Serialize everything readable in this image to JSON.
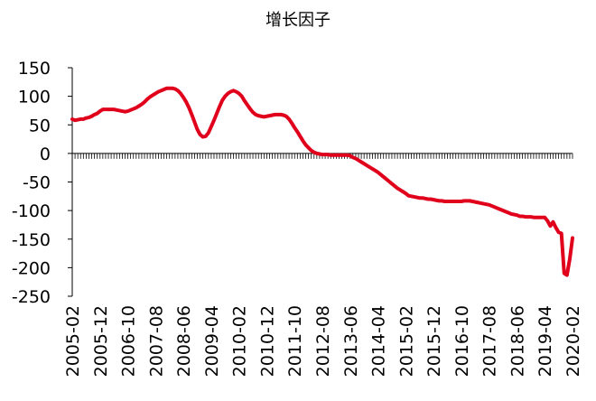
{
  "chart_data": {
    "type": "line",
    "title": "增长因子",
    "categories": [
      "2005-02",
      null,
      null,
      null,
      null,
      null,
      null,
      null,
      null,
      null,
      "2005-12",
      null,
      null,
      null,
      null,
      null,
      null,
      null,
      null,
      null,
      "2006-10",
      null,
      null,
      null,
      null,
      null,
      null,
      null,
      null,
      null,
      "2007-08",
      null,
      null,
      null,
      null,
      null,
      null,
      null,
      null,
      null,
      "2008-06",
      null,
      null,
      null,
      null,
      null,
      null,
      null,
      null,
      null,
      "2009-04",
      null,
      null,
      null,
      null,
      null,
      null,
      null,
      null,
      null,
      "2010-02",
      null,
      null,
      null,
      null,
      null,
      null,
      null,
      null,
      null,
      "2010-12",
      null,
      null,
      null,
      null,
      null,
      null,
      null,
      null,
      null,
      "2011-10",
      null,
      null,
      null,
      null,
      null,
      null,
      null,
      null,
      null,
      "2012-08",
      null,
      null,
      null,
      null,
      null,
      null,
      null,
      null,
      null,
      "2013-06",
      null,
      null,
      null,
      null,
      null,
      null,
      null,
      null,
      null,
      "2014-04",
      null,
      null,
      null,
      null,
      null,
      null,
      null,
      null,
      null,
      "2015-02",
      null,
      null,
      null,
      null,
      null,
      null,
      null,
      null,
      null,
      "2015-12",
      null,
      null,
      null,
      null,
      null,
      null,
      null,
      null,
      null,
      "2016-10",
      null,
      null,
      null,
      null,
      null,
      null,
      null,
      null,
      null,
      "2017-08",
      null,
      null,
      null,
      null,
      null,
      null,
      null,
      null,
      null,
      "2018-06",
      null,
      null,
      null,
      null,
      null,
      null,
      null,
      null,
      null,
      "2019-04",
      null,
      null,
      null,
      null,
      null,
      null,
      null,
      null,
      null,
      "2020-02"
    ],
    "values": [
      60,
      58,
      59,
      60,
      60,
      62,
      63,
      65,
      68,
      70,
      74,
      77,
      77,
      77,
      77,
      77,
      76,
      75,
      74,
      73,
      74,
      76,
      78,
      80,
      83,
      86,
      90,
      95,
      99,
      102,
      105,
      108,
      110,
      112,
      114,
      114,
      114,
      113,
      110,
      105,
      98,
      90,
      80,
      68,
      55,
      42,
      33,
      29,
      30,
      36,
      47,
      58,
      70,
      82,
      93,
      100,
      105,
      108,
      110,
      108,
      105,
      100,
      92,
      85,
      78,
      72,
      68,
      66,
      65,
      64,
      65,
      66,
      67,
      68,
      68,
      68,
      67,
      65,
      60,
      53,
      45,
      38,
      30,
      22,
      15,
      10,
      5,
      2,
      0,
      -1,
      -2,
      -2,
      -2,
      -3,
      -3,
      -3,
      -3,
      -3,
      -3,
      -3,
      -4,
      -7,
      -9,
      -12,
      -15,
      -18,
      -21,
      -24,
      -27,
      -30,
      -33,
      -37,
      -41,
      -45,
      -49,
      -53,
      -57,
      -61,
      -64,
      -67,
      -70,
      -74,
      -75,
      -76,
      -77,
      -78,
      -78,
      -79,
      -80,
      -80,
      -81,
      -82,
      -83,
      -83,
      -84,
      -84,
      -84,
      -84,
      -84,
      -84,
      -84,
      -83,
      -83,
      -83,
      -84,
      -85,
      -86,
      -87,
      -88,
      -89,
      -90,
      -92,
      -94,
      -96,
      -98,
      -100,
      -102,
      -104,
      -106,
      -107,
      -108,
      -110,
      -110,
      -111,
      -111,
      -111,
      -112,
      -112,
      -112,
      -112,
      -112,
      -118,
      -127,
      -120,
      -130,
      -138,
      -140,
      -210,
      -213,
      -185,
      -148
    ],
    "color": "#e0001b",
    "ylim": [
      -250,
      150
    ],
    "yticks": [
      -250,
      -200,
      -150,
      -100,
      -50,
      0,
      50,
      100,
      150
    ],
    "grid": false
  }
}
